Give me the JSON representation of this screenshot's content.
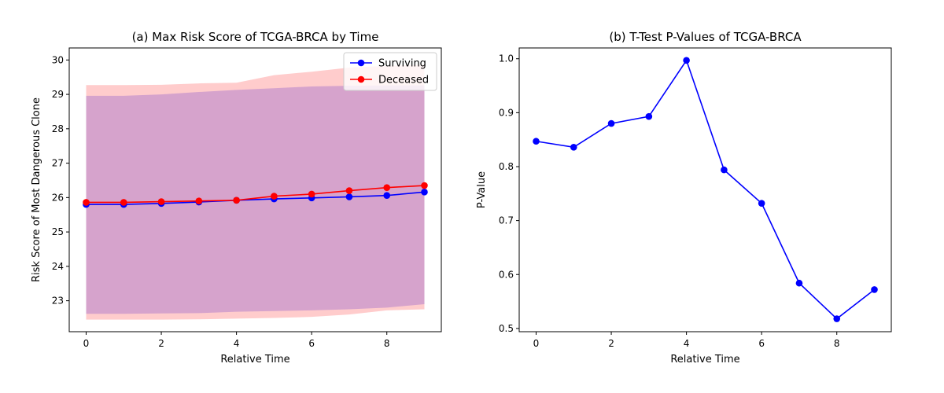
{
  "chart_data": [
    {
      "type": "line",
      "title": "(a) Max Risk Score of TCGA-BRCA by Time",
      "xlabel": "Relative Time",
      "ylabel": "Risk Score of Most Dangerous Clone",
      "xlim": [
        -0.45,
        9.45
      ],
      "ylim": [
        22.1,
        30.35
      ],
      "xticks": [
        0,
        2,
        4,
        6,
        8
      ],
      "yticks": [
        23,
        24,
        25,
        26,
        27,
        28,
        29,
        30
      ],
      "legend": "top-right",
      "x": [
        0,
        1,
        2,
        3,
        4,
        5,
        6,
        7,
        8,
        9
      ],
      "series": [
        {
          "name": "Surviving",
          "color": "#0000ff",
          "values": [
            25.8,
            25.8,
            25.83,
            25.87,
            25.92,
            25.96,
            25.99,
            26.02,
            26.06,
            26.16
          ],
          "band_lower": [
            22.62,
            22.62,
            22.63,
            22.64,
            22.68,
            22.7,
            22.72,
            22.75,
            22.8,
            22.9
          ],
          "band_upper": [
            28.96,
            28.96,
            29.0,
            29.07,
            29.13,
            29.18,
            29.23,
            29.25,
            29.26,
            29.26
          ]
        },
        {
          "name": "Deceased",
          "color": "#ff0000",
          "values": [
            25.86,
            25.86,
            25.88,
            25.9,
            25.92,
            26.04,
            26.1,
            26.2,
            26.29,
            26.35
          ],
          "band_lower": [
            22.45,
            22.45,
            22.45,
            22.46,
            22.48,
            22.5,
            22.53,
            22.6,
            22.72,
            22.75
          ],
          "band_upper": [
            29.27,
            29.27,
            29.28,
            29.32,
            29.34,
            29.56,
            29.66,
            29.78,
            29.83,
            29.86
          ]
        }
      ]
    },
    {
      "type": "line",
      "title": "(b) T-Test P-Values of TCGA-BRCA",
      "xlabel": "Relative Time",
      "ylabel": "P-Value",
      "xlim": [
        -0.45,
        9.45
      ],
      "ylim": [
        0.494,
        1.02
      ],
      "xticks": [
        0,
        2,
        4,
        6,
        8
      ],
      "yticks": [
        0.5,
        0.6,
        0.7,
        0.8,
        0.9,
        1.0
      ],
      "x": [
        0,
        1,
        2,
        3,
        4,
        5,
        6,
        7,
        8,
        9
      ],
      "series": [
        {
          "color": "#0000ff",
          "values": [
            0.847,
            0.836,
            0.88,
            0.893,
            0.997,
            0.794,
            0.732,
            0.584,
            0.518,
            0.572
          ]
        }
      ]
    }
  ]
}
